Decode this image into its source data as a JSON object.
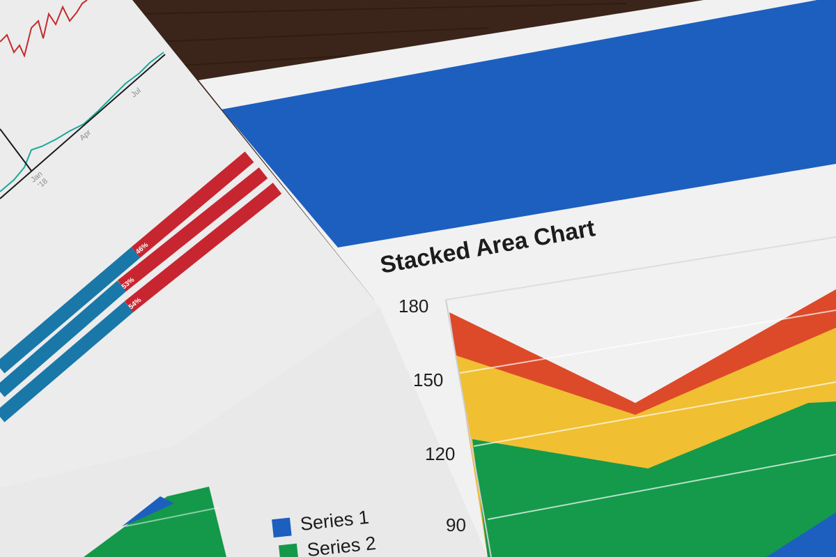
{
  "colors": {
    "wood": "#3b2419",
    "paper": "#efefef",
    "banner_blue": "#1d5fbf",
    "series_red": "#dc4a2a",
    "series_yellow": "#f0bf32",
    "series_green": "#149a4a",
    "series_blue": "#1d5fbf",
    "bar_blue": "#1a78a8",
    "bar_red": "#c72530",
    "line_teal": "#1aa79a",
    "line_red": "#c42a2a"
  },
  "left_paper": {
    "line_chart": {
      "x_labels": [
        "Jan",
        "'18",
        "Apr",
        "Jul"
      ]
    },
    "bar_chart": {
      "percent_labels": [
        "46%",
        "53%",
        "54%"
      ],
      "red_shares": [
        46,
        53,
        54
      ]
    }
  },
  "right_paper": {
    "title": "Stacked Area Chart",
    "y_ticks": [
      "180",
      "150",
      "120",
      "90"
    ]
  },
  "bottom_paper": {
    "legend": [
      "Series 1",
      "Series 2"
    ]
  }
}
